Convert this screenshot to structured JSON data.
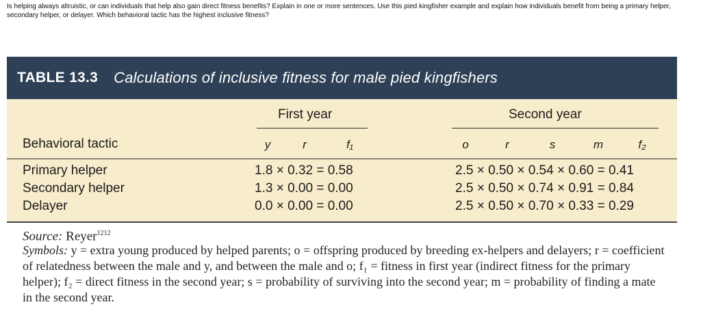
{
  "question": "Is helping always altruistic, or can individuals that help also gain direct fitness benefits? Explain in one or more sentences. Use this pied kingfisher example and explain how individuals benefit from being a primary helper, secondary helper, or delayer. Which behavioral tactic has the highest inclusive fitness?",
  "table": {
    "number": "TABLE 13.3",
    "title": "Calculations of inclusive fitness for male pied kingfishers",
    "first_year": "First year",
    "second_year": "Second year",
    "tactic_header": "Behavioral tactic",
    "first_vars": [
      "y",
      "r",
      "f₁"
    ],
    "second_vars": [
      "o",
      "r",
      "s",
      "m",
      "f₂"
    ],
    "rows": [
      {
        "tactic": "Primary helper",
        "first": "1.8 × 0.32 = 0.58",
        "second": "2.5 × 0.50 × 0.54 × 0.60 = 0.41"
      },
      {
        "tactic": "Secondary helper",
        "first": "1.3 × 0.00 = 0.00",
        "second": "2.5 × 0.50 × 0.74 × 0.91 = 0.84"
      },
      {
        "tactic": "Delayer",
        "first": "0.0 × 0.00 = 0.00",
        "second": "2.5 × 0.50 × 0.70 × 0.33 = 0.29"
      }
    ],
    "source_label": "Source:",
    "source_name": "Reyer",
    "source_ref": "1212",
    "symbols_label": "Symbols:",
    "symbols_text": "y = extra young produced by helped parents; o = offspring produced by breeding ex-helpers and delayers; r = coefficient of relatedness between the male and y, and between the male and o; f₁ = fitness in first year (indirect fitness for the primary helper); f₂ = direct fitness in the second year; s = probability of surviving into the second year; m = probability of finding a mate in the second year."
  }
}
